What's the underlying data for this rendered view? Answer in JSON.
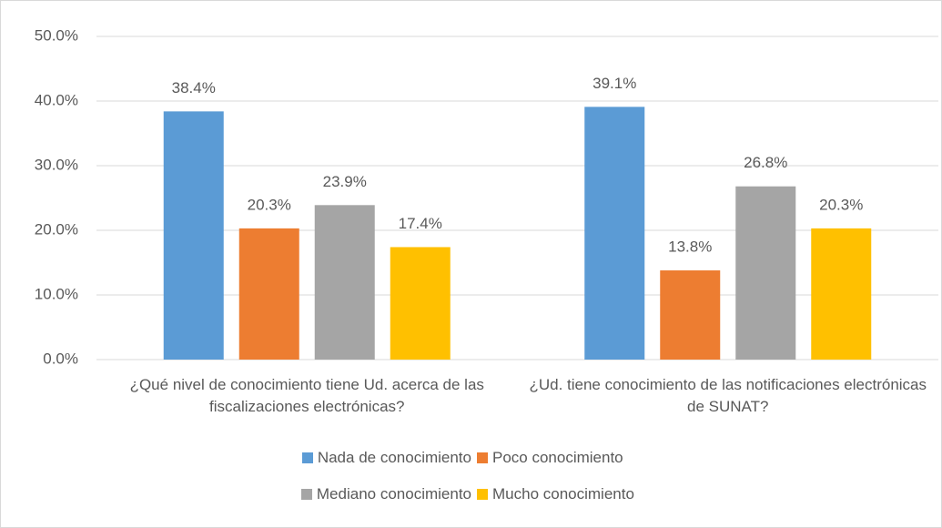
{
  "chart_data": {
    "type": "bar",
    "categories": [
      "¿Qué nivel de conocimiento tiene Ud. acerca de las fiscalizaciones electrónicas?",
      "¿Ud. tiene conocimiento de las notificaciones electrónicas de SUNAT?"
    ],
    "series": [
      {
        "name": "Nada de conocimiento",
        "color": "#5b9bd5",
        "values": [
          38.4,
          39.1
        ],
        "value_labels": [
          "38.4%",
          "39.1%"
        ]
      },
      {
        "name": "Poco conocimiento",
        "color": "#ed7d31",
        "values": [
          20.3,
          13.8
        ],
        "value_labels": [
          "20.3%",
          "13.8%"
        ]
      },
      {
        "name": "Mediano conocimiento",
        "color": "#a5a5a5",
        "values": [
          23.9,
          26.8
        ],
        "value_labels": [
          "23.9%",
          "26.8%"
        ]
      },
      {
        "name": "Mucho conocimiento",
        "color": "#ffc000",
        "values": [
          17.4,
          20.3
        ],
        "value_labels": [
          "17.4%",
          "20.3%"
        ]
      }
    ],
    "ylim": [
      0,
      50
    ],
    "yticks": [
      {
        "value": 0,
        "label": "0.0%"
      },
      {
        "value": 10,
        "label": "10.0%"
      },
      {
        "value": 20,
        "label": "20.0%"
      },
      {
        "value": 30,
        "label": "30.0%"
      },
      {
        "value": 40,
        "label": "40.0%"
      },
      {
        "value": 50,
        "label": "50.0%"
      }
    ],
    "grid": true,
    "legend": "bottom"
  }
}
